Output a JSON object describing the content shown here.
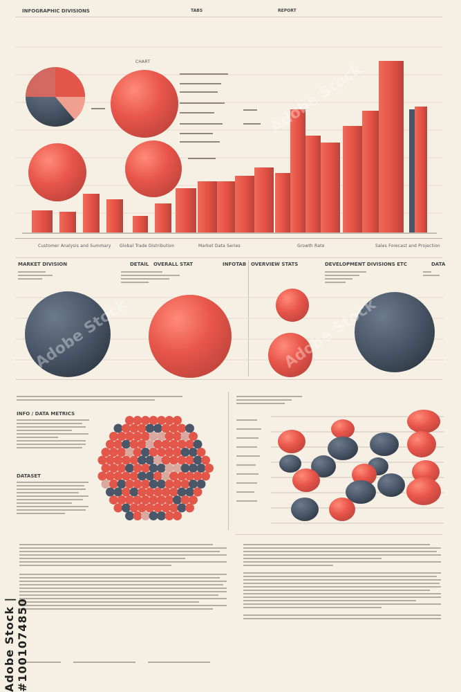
{
  "header": {
    "title": "INFOGRAPHIC DIVISIONS",
    "tag_1": "TABS",
    "tag_2": "REPORT"
  },
  "top_chart": {
    "label": "CHART",
    "captions": [
      "Customer Analysis and Summary",
      "Global Trade Distribution",
      "Market Data Series",
      "Growth Rate",
      "Sales Forecast and Projection"
    ]
  },
  "middle": {
    "left_title": "MARKET DIVISION",
    "center_title_a": "DETAIL",
    "center_title_b": "OVERALL STAT",
    "center_title_c": "INFOTAB",
    "center_title_d": "OVERVIEW STATS",
    "right_title": "DEVELOPMENT DIVISIONS ETC",
    "right_tag": "DATA"
  },
  "lower_left": {
    "title": "INFO / DATA METRICS",
    "subtitle": "DATASET"
  },
  "watermark": {
    "id": "Adobe Stock | #1001074850",
    "diag": "Adobe Stock"
  },
  "colors": {
    "red": "#e3574a",
    "navy": "#4a5768",
    "background": "#f6efe4"
  }
}
